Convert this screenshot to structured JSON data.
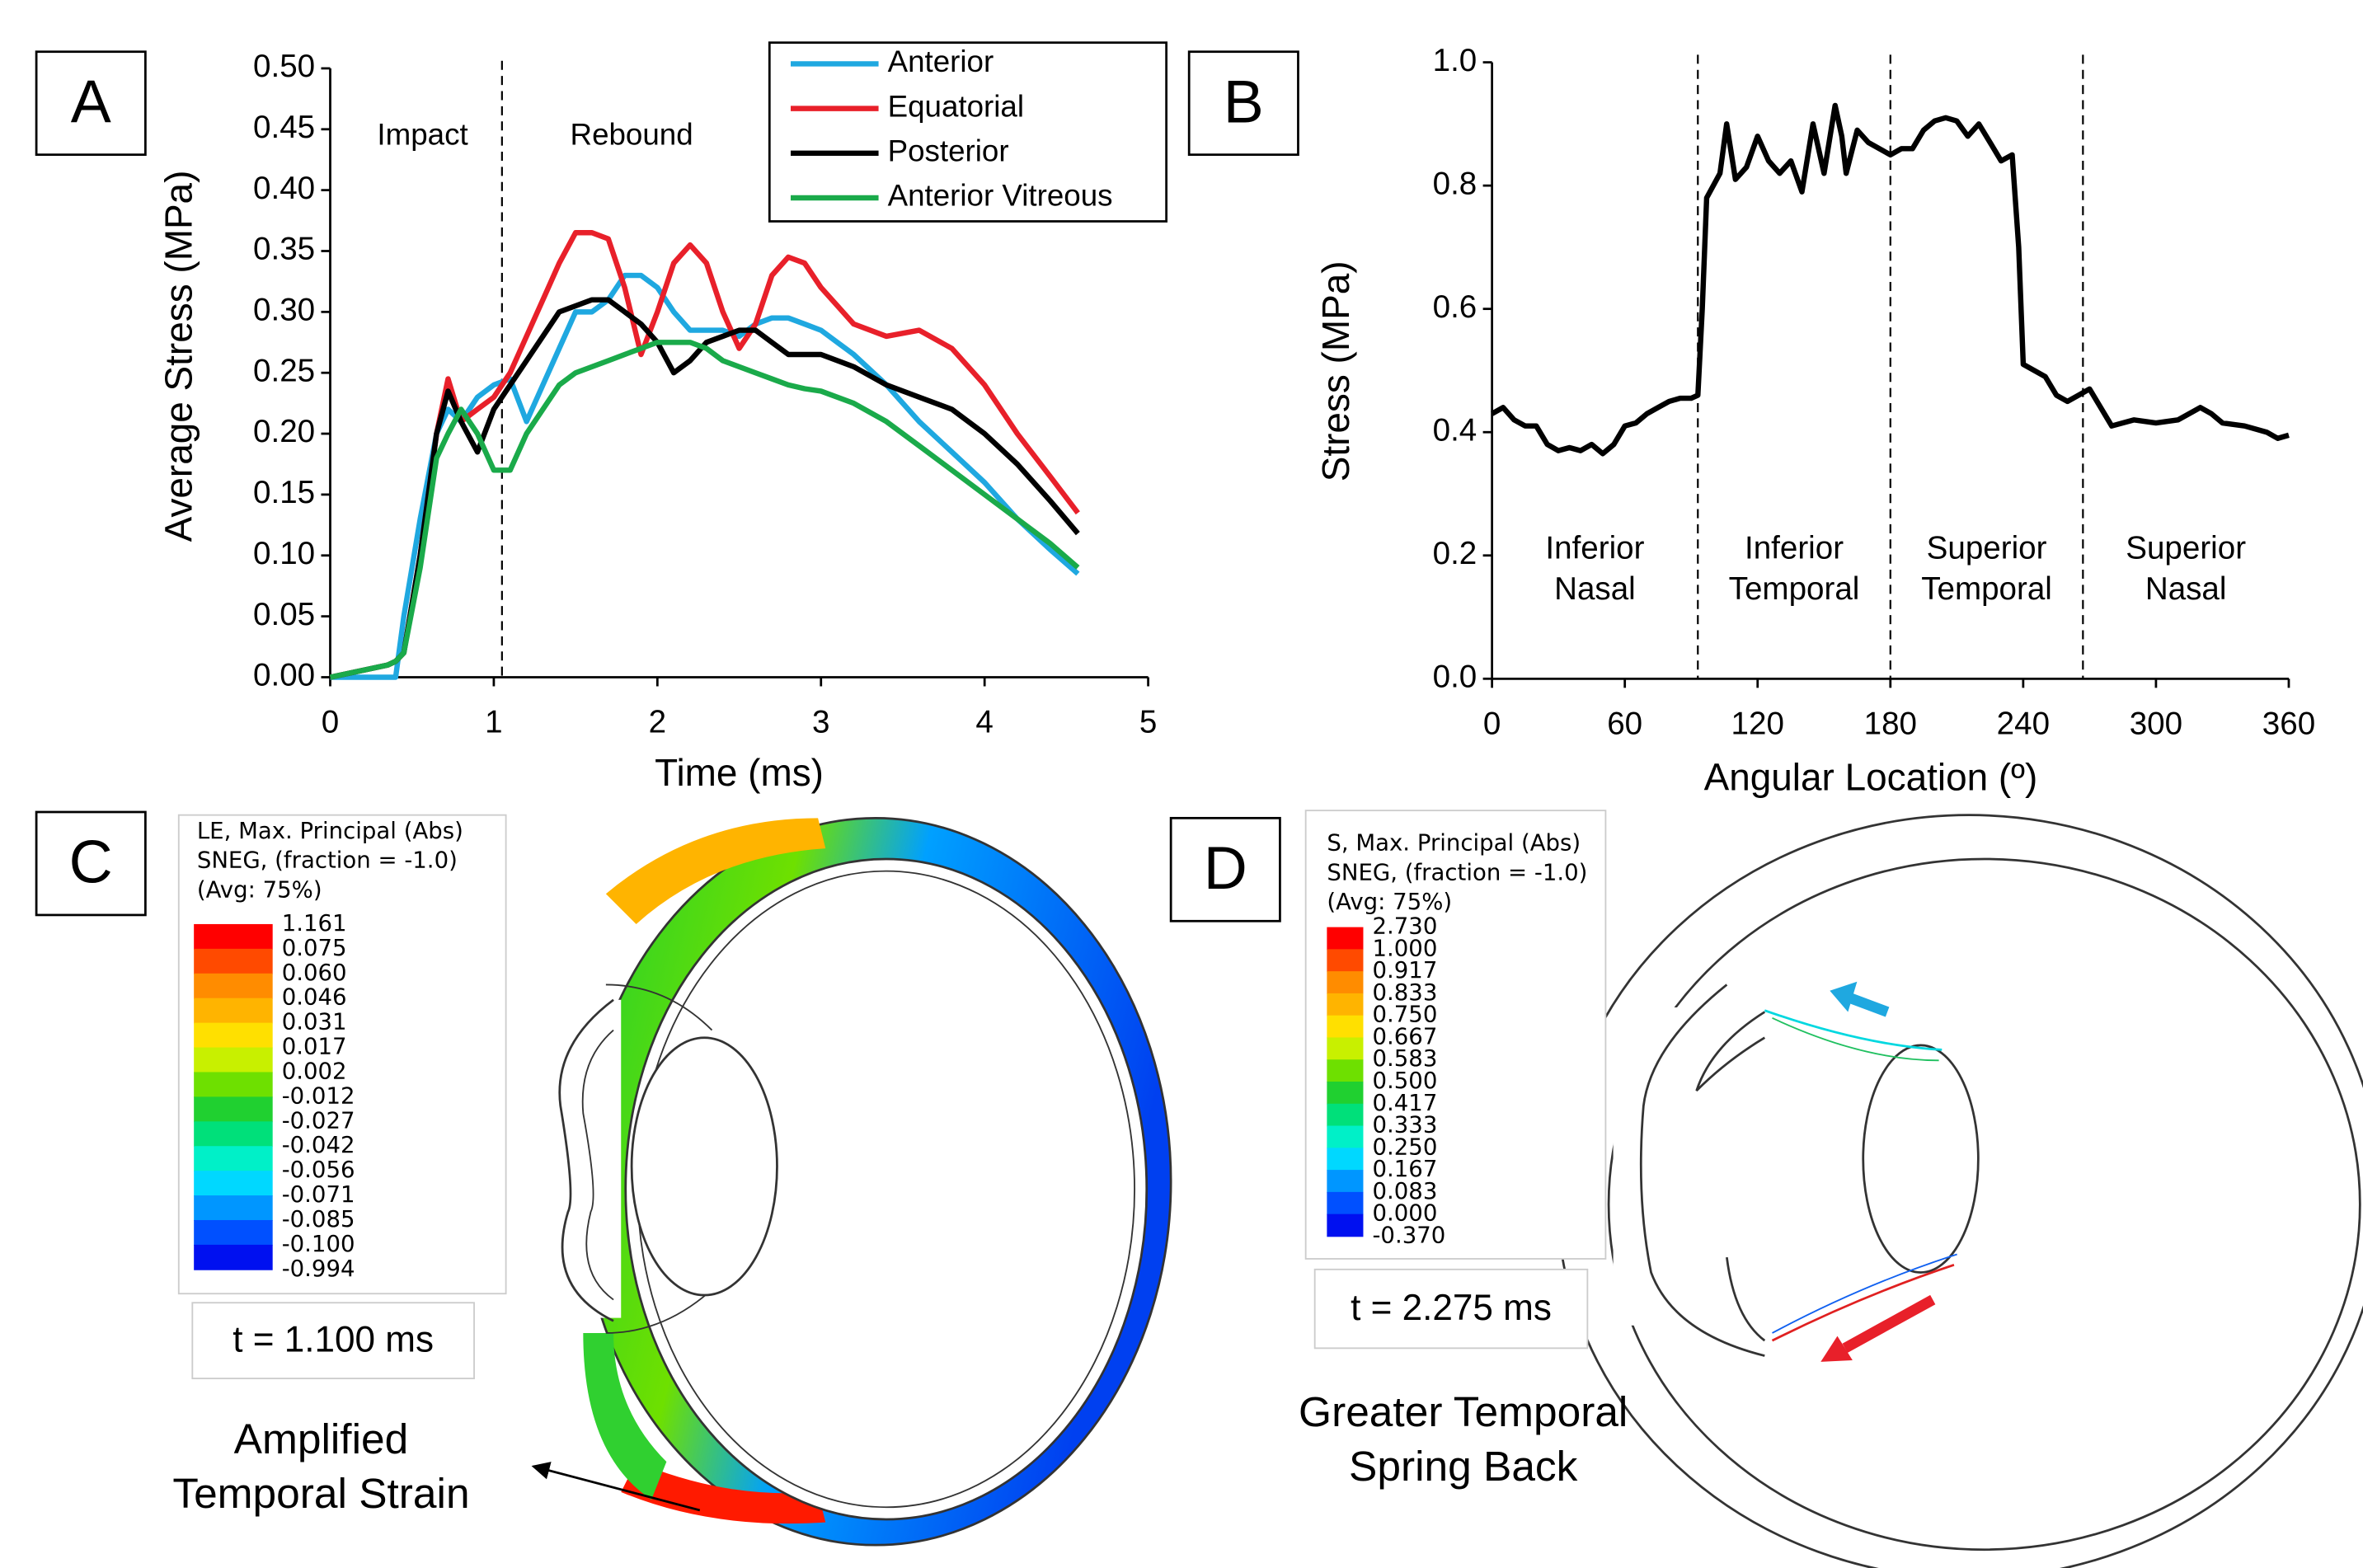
{
  "chart_data": [
    {
      "type": "line",
      "panel": "A",
      "xlabel": "Time (ms)",
      "ylabel": "Average Stress (MPa)",
      "annotations": [
        "Impact",
        "Rebound"
      ],
      "vlines": [
        1.05
      ],
      "xlim": [
        0,
        5
      ],
      "xticks": [
        0,
        1,
        2,
        3,
        4,
        5
      ],
      "ylim": [
        0,
        0.5
      ],
      "yticks": [
        {
          "value": 0,
          "label": "0.00"
        },
        0.05,
        {
          "value": 0.1,
          "label": "0.10"
        },
        0.15,
        {
          "value": 0.2,
          "label": "0.20"
        },
        0.25,
        {
          "value": 0.3,
          "label": "0.30"
        },
        0.35,
        {
          "value": 0.4,
          "label": "0.40"
        },
        0.45,
        {
          "value": 0.5,
          "label": "0.50"
        }
      ],
      "legend": "top-right",
      "x": [
        0,
        0.35,
        0.4,
        0.45,
        0.55,
        0.65,
        0.72,
        0.8,
        0.9,
        1.0,
        1.1,
        1.2,
        1.3,
        1.4,
        1.5,
        1.6,
        1.7,
        1.8,
        1.9,
        2.0,
        2.1,
        2.2,
        2.3,
        2.4,
        2.5,
        2.6,
        2.7,
        2.8,
        2.9,
        3.0,
        3.2,
        3.4,
        3.6,
        3.8,
        4.0,
        4.2,
        4.4,
        4.57
      ],
      "series": [
        {
          "name": "Anterior",
          "color": "#1fa8e0",
          "values": [
            0,
            0,
            0,
            0.05,
            0.13,
            0.2,
            0.22,
            0.21,
            0.23,
            0.24,
            0.245,
            0.21,
            0.24,
            0.27,
            0.3,
            0.3,
            0.31,
            0.33,
            0.33,
            0.32,
            0.3,
            0.285,
            0.285,
            0.285,
            0.28,
            0.29,
            0.295,
            0.295,
            0.29,
            0.285,
            0.265,
            0.24,
            0.21,
            0.185,
            0.16,
            0.13,
            0.105,
            0.085
          ]
        },
        {
          "name": "Equatorial",
          "color": "#e8202a",
          "values": [
            0,
            0.01,
            0.013,
            0.02,
            0.1,
            0.2,
            0.245,
            0.21,
            0.22,
            0.23,
            0.25,
            0.28,
            0.31,
            0.34,
            0.365,
            0.365,
            0.36,
            0.32,
            0.265,
            0.3,
            0.34,
            0.355,
            0.34,
            0.3,
            0.27,
            0.29,
            0.33,
            0.345,
            0.34,
            0.32,
            0.29,
            0.28,
            0.285,
            0.27,
            0.24,
            0.2,
            0.165,
            0.135
          ]
        },
        {
          "name": "Posterior",
          "color": "#000000",
          "values": [
            0,
            0.01,
            0.013,
            0.02,
            0.1,
            0.2,
            0.235,
            0.21,
            0.185,
            0.22,
            0.24,
            0.26,
            0.28,
            0.3,
            0.305,
            0.31,
            0.31,
            0.3,
            0.29,
            0.275,
            0.25,
            0.26,
            0.275,
            0.28,
            0.285,
            0.285,
            0.275,
            0.265,
            0.265,
            0.265,
            0.255,
            0.24,
            0.23,
            0.22,
            0.2,
            0.175,
            0.145,
            0.118
          ]
        },
        {
          "name": "Anterior Vitreous",
          "color": "#1aaa4a",
          "values": [
            0,
            0.01,
            0.013,
            0.02,
            0.09,
            0.18,
            0.2,
            0.22,
            0.2,
            0.17,
            0.17,
            0.2,
            0.22,
            0.24,
            0.25,
            0.255,
            0.26,
            0.265,
            0.27,
            0.275,
            0.275,
            0.275,
            0.27,
            0.26,
            0.255,
            0.25,
            0.245,
            0.24,
            0.237,
            0.235,
            0.225,
            0.21,
            0.19,
            0.17,
            0.15,
            0.13,
            0.11,
            0.09
          ]
        }
      ]
    },
    {
      "type": "line",
      "panel": "B",
      "xlabel": "Angular Location (º)",
      "ylabel": "Stress (MPa)",
      "vlines": [
        93,
        180,
        267
      ],
      "regions": [
        [
          "Inferior",
          "Nasal"
        ],
        [
          "Inferior",
          "Temporal"
        ],
        [
          "Superior",
          "Temporal"
        ],
        [
          "Superior",
          "Nasal"
        ]
      ],
      "xlim": [
        0,
        360
      ],
      "xticks": [
        0,
        60,
        120,
        180,
        240,
        300,
        360
      ],
      "ylim": [
        0,
        1
      ],
      "yticks": [
        {
          "value": 0,
          "label": "0.0"
        },
        0.2,
        0.4,
        0.6,
        0.8,
        {
          "value": 1,
          "label": "1.0"
        }
      ],
      "x": [
        0,
        5,
        10,
        15,
        20,
        25,
        30,
        35,
        40,
        45,
        50,
        55,
        60,
        65,
        70,
        75,
        80,
        85,
        90,
        93,
        95,
        97,
        100,
        103,
        106,
        110,
        115,
        120,
        125,
        130,
        135,
        140,
        145,
        150,
        155,
        158,
        160,
        165,
        170,
        175,
        180,
        185,
        190,
        195,
        200,
        205,
        210,
        215,
        220,
        225,
        230,
        235,
        238,
        240,
        245,
        250,
        255,
        260,
        265,
        270,
        275,
        280,
        290,
        300,
        310,
        320,
        325,
        330,
        340,
        350,
        355,
        360
      ],
      "series": [
        {
          "color": "#000000",
          "values": [
            0.43,
            0.44,
            0.42,
            0.41,
            0.41,
            0.38,
            0.37,
            0.375,
            0.37,
            0.38,
            0.365,
            0.38,
            0.41,
            0.415,
            0.43,
            0.44,
            0.45,
            0.455,
            0.455,
            0.46,
            0.6,
            0.78,
            0.8,
            0.82,
            0.9,
            0.81,
            0.83,
            0.88,
            0.84,
            0.82,
            0.84,
            0.79,
            0.9,
            0.82,
            0.93,
            0.88,
            0.82,
            0.89,
            0.87,
            0.86,
            0.85,
            0.86,
            0.86,
            0.89,
            0.905,
            0.91,
            0.905,
            0.88,
            0.9,
            0.87,
            0.84,
            0.85,
            0.7,
            0.51,
            0.5,
            0.49,
            0.46,
            0.45,
            0.46,
            0.47,
            0.44,
            0.41,
            0.42,
            0.415,
            0.42,
            0.44,
            0.43,
            0.415,
            0.41,
            0.4,
            0.39,
            0.395
          ]
        }
      ]
    }
  ],
  "contour_panels": [
    {
      "panel": "C",
      "legend_title": [
        "LE, Max. Principal (Abs)",
        "SNEG, (fraction = -1.0)",
        "(Avg: 75%)"
      ],
      "levels": [
        "1.161",
        "0.075",
        "0.060",
        "0.046",
        "0.031",
        "0.017",
        "0.002",
        "-0.012",
        "-0.027",
        "-0.042",
        "-0.056",
        "-0.071",
        "-0.085",
        "-0.100",
        "-0.994"
      ],
      "colors": [
        "#ff0000",
        "#ff4a00",
        "#ff8c00",
        "#ffb400",
        "#ffe000",
        "#c8f000",
        "#6ee000",
        "#20d030",
        "#00e07a",
        "#00f0c8",
        "#00d8ff",
        "#0096ff",
        "#0050ff",
        "#0010f0"
      ],
      "time": "t = 1.100 ms",
      "annotation": [
        "Amplified",
        "Temporal Strain"
      ]
    },
    {
      "panel": "D",
      "legend_title": [
        "S, Max. Principal (Abs)",
        "SNEG, (fraction = -1.0)",
        "(Avg: 75%)"
      ],
      "levels": [
        "2.730",
        "1.000",
        "0.917",
        "0.833",
        "0.750",
        "0.667",
        "0.583",
        "0.500",
        "0.417",
        "0.333",
        "0.250",
        "0.167",
        "0.083",
        "0.000",
        "-0.370"
      ],
      "colors": [
        "#ff0000",
        "#ff4a00",
        "#ff8c00",
        "#ffb400",
        "#ffe000",
        "#c8f000",
        "#6ee000",
        "#20d030",
        "#00e07a",
        "#00f0c8",
        "#00d8ff",
        "#0096ff",
        "#0050ff",
        "#0010f0"
      ],
      "time": "t = 2.275 ms",
      "annotation": [
        "Greater Temporal",
        "Spring Back"
      ]
    }
  ]
}
